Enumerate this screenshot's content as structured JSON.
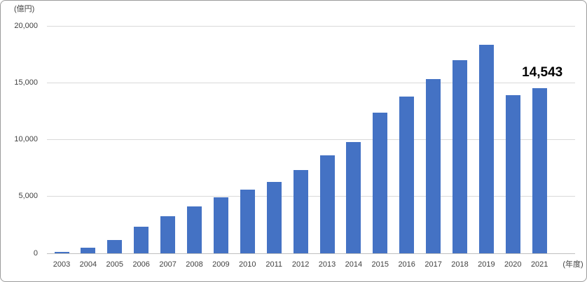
{
  "chart_data": {
    "type": "bar",
    "title": "",
    "unit_label": "(億円)",
    "axis_suffix_label": "(年度)",
    "categories": [
      "2003",
      "2004",
      "2005",
      "2006",
      "2007",
      "2008",
      "2009",
      "2010",
      "2011",
      "2012",
      "2013",
      "2014",
      "2015",
      "2016",
      "2017",
      "2018",
      "2019",
      "2020",
      "2021"
    ],
    "values": [
      150,
      500,
      1200,
      2350,
      3250,
      4150,
      4900,
      5600,
      6250,
      7300,
      8600,
      9800,
      12350,
      13800,
      15300,
      17000,
      18350,
      13900,
      14543
    ],
    "highlight": {
      "category": "2021",
      "label": "14,543"
    },
    "xlabel": "",
    "ylabel": "",
    "ylim": [
      0,
      20000
    ],
    "yticks": [
      0,
      5000,
      10000,
      15000,
      20000
    ],
    "ytick_labels": [
      "0",
      "5,000",
      "10,000",
      "15,000",
      "20,000"
    ],
    "grid": true,
    "legend": "none",
    "bar_color": "#4472C4",
    "gridline_color": "#D9D9D9",
    "axis_color": "#BFBFBF",
    "text_color": "#404040",
    "highlight_label_color": "#000000"
  }
}
